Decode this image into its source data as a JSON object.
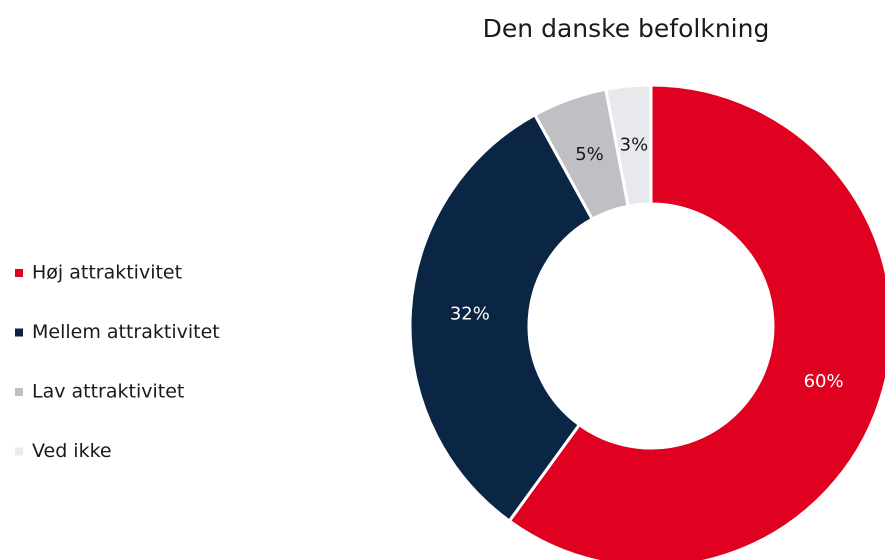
{
  "chart_data": {
    "type": "donut",
    "title": "Den danske befolkning",
    "categories": [
      "Høj attraktivitet",
      "Mellem attraktivitet",
      "Lav attraktivitet",
      "Ved ikke"
    ],
    "values": [
      60,
      32,
      5,
      3
    ],
    "value_labels": [
      "60%",
      "32%",
      "5%",
      "3%"
    ],
    "colors": [
      "#e0001f",
      "#0b2545",
      "#bfc0c4",
      "#e8e9ec"
    ],
    "legend": "left"
  }
}
